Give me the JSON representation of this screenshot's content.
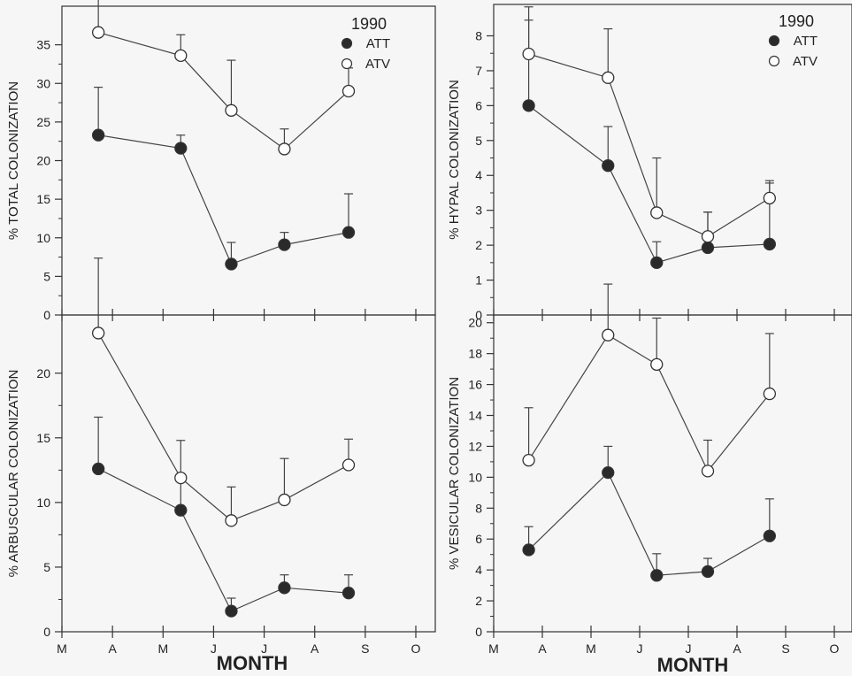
{
  "figure": {
    "xlabel": "MONTH"
  },
  "legend_entries": [
    "ATT",
    "ATV"
  ],
  "colors": {
    "att": "#2a2a2a",
    "atv": "#ffffff",
    "axis": "#333333",
    "line": "#444444"
  },
  "months": [
    "M",
    "A",
    "M",
    "J",
    "J",
    "A",
    "S",
    "O"
  ],
  "chart_data": [
    {
      "type": "line",
      "ylabel": "% TOTAL COLONIZATION",
      "legend_title": "1990",
      "legend_placement": "top-right",
      "ylim": [
        0,
        40
      ],
      "yticks": [
        0,
        5,
        10,
        15,
        20,
        25,
        30,
        35
      ],
      "x_ticks": [
        "M",
        "A",
        "M",
        "J",
        "J",
        "A",
        "S",
        "O"
      ],
      "x": [
        0.72,
        2.35,
        3.35,
        4.4,
        5.67
      ],
      "series": [
        {
          "name": "ATT",
          "values": [
            23.3,
            21.6,
            6.6,
            9.1,
            10.7
          ],
          "error": [
            6.2,
            1.7,
            2.8,
            1.6,
            5.0
          ]
        },
        {
          "name": "ATV",
          "values": [
            36.6,
            33.6,
            26.5,
            21.5,
            29.0
          ],
          "error": [
            6.5,
            2.7,
            6.5,
            2.6,
            3.0
          ]
        }
      ]
    },
    {
      "type": "line",
      "ylabel": "% HYPAL COLONIZATION",
      "legend_title": "1990",
      "legend_placement": "top-right",
      "ylim": [
        0,
        8.9
      ],
      "yticks": [
        0,
        1,
        2,
        3,
        4,
        5,
        6,
        7,
        8
      ],
      "x_ticks": [
        "M",
        "A",
        "M",
        "J",
        "J",
        "A",
        "S",
        "O"
      ],
      "x": [
        0.72,
        2.35,
        3.35,
        4.4,
        5.67
      ],
      "series": [
        {
          "name": "ATT",
          "values": [
            6.0,
            4.28,
            1.5,
            1.93,
            2.03
          ],
          "error": [
            2.45,
            1.12,
            0.6,
            1.02,
            1.75
          ]
        },
        {
          "name": "ATV",
          "values": [
            7.48,
            6.8,
            2.93,
            2.25,
            3.35
          ],
          "error": [
            1.35,
            1.4,
            1.57,
            0.7,
            0.5
          ]
        }
      ]
    },
    {
      "type": "line",
      "ylabel": "% ARBUSCULAR COLONIZATION",
      "ylim": [
        0,
        24.5
      ],
      "yticks": [
        0,
        5,
        10,
        15,
        20
      ],
      "x_ticks": [
        "M",
        "A",
        "M",
        "J",
        "J",
        "A",
        "S",
        "O"
      ],
      "x": [
        0.72,
        2.35,
        3.35,
        4.4,
        5.67
      ],
      "series": [
        {
          "name": "ATT",
          "values": [
            12.6,
            9.4,
            1.6,
            3.4,
            3.0
          ],
          "error": [
            4.0,
            2.3,
            1.0,
            1.0,
            1.4
          ]
        },
        {
          "name": "ATV",
          "values": [
            23.1,
            11.9,
            8.6,
            10.2,
            12.9
          ],
          "error": [
            5.8,
            2.9,
            2.6,
            3.2,
            2.0
          ]
        }
      ]
    },
    {
      "type": "line",
      "ylabel": "% VESICULAR COLONIZATION",
      "ylim": [
        0,
        20.5
      ],
      "yticks": [
        0,
        2,
        4,
        6,
        8,
        10,
        12,
        14,
        16,
        18,
        20
      ],
      "x_ticks": [
        "M",
        "A",
        "M",
        "J",
        "J",
        "A",
        "S",
        "O"
      ],
      "x": [
        0.72,
        2.35,
        3.35,
        4.4,
        5.67
      ],
      "series": [
        {
          "name": "ATT",
          "values": [
            5.3,
            10.3,
            3.65,
            3.9,
            6.2
          ],
          "error": [
            1.5,
            1.7,
            1.4,
            0.85,
            2.4
          ]
        },
        {
          "name": "ATV",
          "values": [
            11.1,
            19.2,
            17.3,
            10.4,
            15.4
          ],
          "error": [
            3.4,
            3.3,
            3.0,
            2.0,
            3.9
          ]
        }
      ]
    }
  ]
}
